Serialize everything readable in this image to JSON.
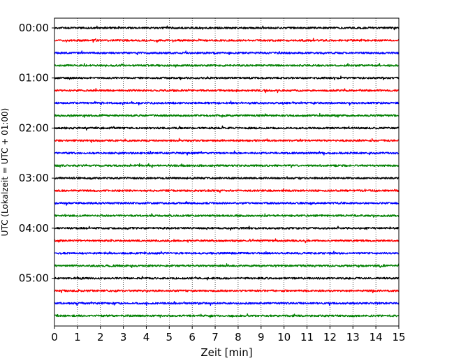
{
  "chart_data": {
    "type": "line",
    "title": "",
    "xlabel": "Zeit  [min]",
    "ylabel": "UTC (Lokalzeit = UTC + 01:00)",
    "xlim": [
      0,
      15
    ],
    "x_ticks": [
      "0",
      "1",
      "2",
      "3",
      "4",
      "5",
      "6",
      "7",
      "8",
      "9",
      "10",
      "11",
      "12",
      "13",
      "14",
      "15"
    ],
    "y_tick_labels": [
      "00:00",
      "01:00",
      "02:00",
      "03:00",
      "04:00",
      "05:00"
    ],
    "traces_per_hour": 4,
    "trace_interval_minutes": 15,
    "trace_count": 24,
    "trace_colors": [
      "#000000",
      "#ff0000",
      "#0000ff",
      "#008000"
    ],
    "grid": {
      "x": "dotted",
      "y": "off"
    },
    "series": [
      {
        "start": "00:00",
        "color": "#000000"
      },
      {
        "start": "00:15",
        "color": "#ff0000"
      },
      {
        "start": "00:30",
        "color": "#0000ff"
      },
      {
        "start": "00:45",
        "color": "#008000"
      },
      {
        "start": "01:00",
        "color": "#000000"
      },
      {
        "start": "01:15",
        "color": "#ff0000"
      },
      {
        "start": "01:30",
        "color": "#0000ff"
      },
      {
        "start": "01:45",
        "color": "#008000"
      },
      {
        "start": "02:00",
        "color": "#000000"
      },
      {
        "start": "02:15",
        "color": "#ff0000"
      },
      {
        "start": "02:30",
        "color": "#0000ff"
      },
      {
        "start": "02:45",
        "color": "#008000"
      },
      {
        "start": "03:00",
        "color": "#000000"
      },
      {
        "start": "03:15",
        "color": "#ff0000"
      },
      {
        "start": "03:30",
        "color": "#0000ff"
      },
      {
        "start": "03:45",
        "color": "#008000"
      },
      {
        "start": "04:00",
        "color": "#000000"
      },
      {
        "start": "04:15",
        "color": "#ff0000"
      },
      {
        "start": "04:30",
        "color": "#0000ff"
      },
      {
        "start": "04:45",
        "color": "#008000"
      },
      {
        "start": "05:00",
        "color": "#000000"
      },
      {
        "start": "05:15",
        "color": "#ff0000"
      },
      {
        "start": "05:30",
        "color": "#0000ff"
      },
      {
        "start": "05:45",
        "color": "#008000"
      }
    ]
  }
}
